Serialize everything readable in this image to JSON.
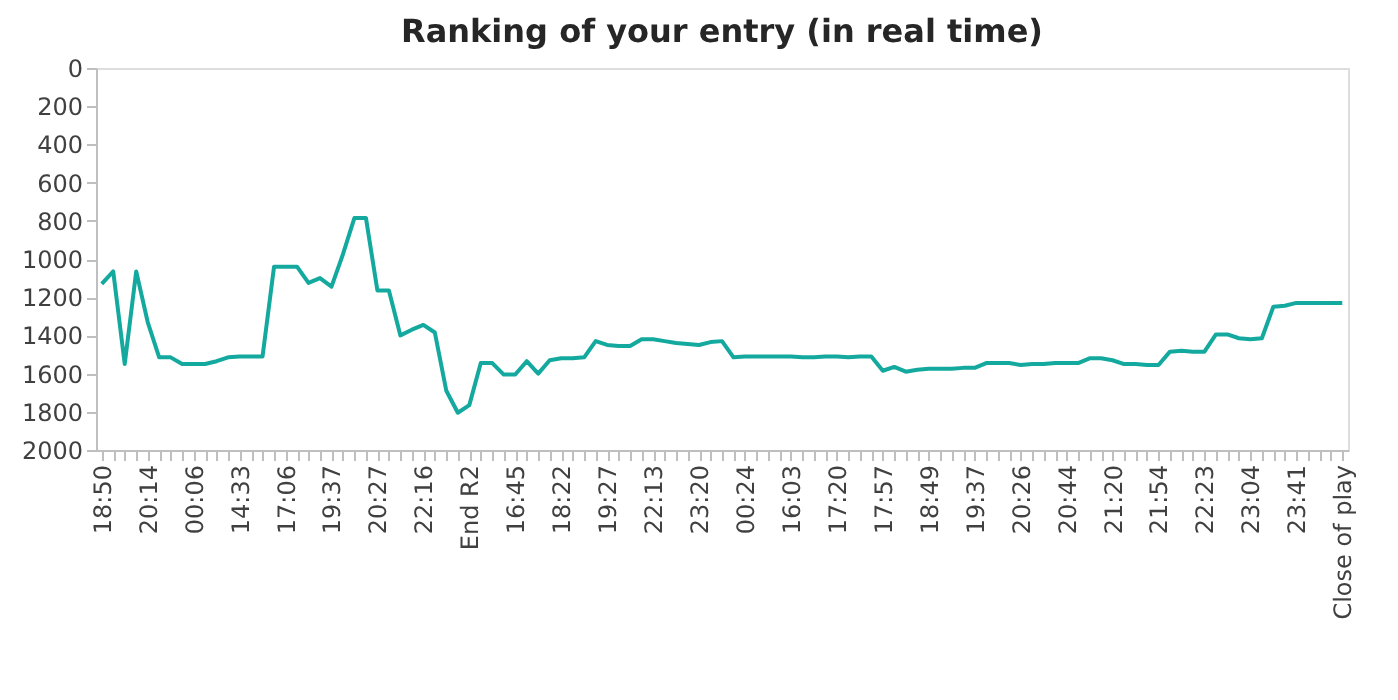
{
  "chart_data": {
    "type": "line",
    "title": "Ranking of your entry (in real time)",
    "categories": [
      "18:50",
      null,
      null,
      null,
      "20:14",
      null,
      null,
      null,
      "00:06",
      null,
      null,
      null,
      "14:33",
      null,
      null,
      null,
      "17:06",
      null,
      null,
      null,
      "19:37",
      null,
      null,
      null,
      "20:27",
      null,
      null,
      null,
      "22:16",
      null,
      null,
      null,
      "End R2",
      null,
      null,
      null,
      "16:45",
      null,
      null,
      null,
      "18:22",
      null,
      null,
      null,
      "19:27",
      null,
      null,
      null,
      "22:13",
      null,
      null,
      null,
      "23:20",
      null,
      null,
      null,
      "00:24",
      null,
      null,
      null,
      "16:03",
      null,
      null,
      null,
      "17:20",
      null,
      null,
      null,
      "17:57",
      null,
      null,
      null,
      "18:49",
      null,
      null,
      null,
      "19:37",
      null,
      null,
      null,
      "20:26",
      null,
      null,
      null,
      "20:44",
      null,
      null,
      null,
      "21:20",
      null,
      null,
      null,
      "21:54",
      null,
      null,
      null,
      "22:23",
      null,
      null,
      null,
      "23:04",
      null,
      null,
      null,
      "23:41",
      null,
      null,
      null,
      "Close of play"
    ],
    "series": [
      {
        "color": "#14a99e",
        "values": [
          1130,
          1065,
          1550,
          1065,
          1330,
          1515,
          1515,
          1550,
          1550,
          1550,
          1535,
          1515,
          1510,
          1510,
          1510,
          1040,
          1040,
          1040,
          1125,
          1100,
          1145,
          975,
          785,
          785,
          1165,
          1165,
          1400,
          1370,
          1345,
          1385,
          1690,
          1805,
          1765,
          1545,
          1545,
          1605,
          1605,
          1535,
          1600,
          1530,
          1520,
          1520,
          1515,
          1430,
          1450,
          1455,
          1455,
          1420,
          1420,
          1430,
          1440,
          1445,
          1450,
          1435,
          1430,
          1515,
          1510,
          1510,
          1510,
          1510,
          1510,
          1515,
          1515,
          1510,
          1510,
          1515,
          1510,
          1510,
          1585,
          1565,
          1590,
          1580,
          1575,
          1575,
          1575,
          1570,
          1570,
          1545,
          1545,
          1545,
          1555,
          1550,
          1550,
          1545,
          1545,
          1545,
          1520,
          1520,
          1530,
          1550,
          1550,
          1555,
          1555,
          1485,
          1480,
          1485,
          1485,
          1395,
          1395,
          1415,
          1420,
          1415,
          1250,
          1245,
          1230,
          1230,
          1230,
          1230,
          1230
        ]
      }
    ],
    "ylim": [
      2000,
      0
    ],
    "yticks": [
      0,
      200,
      400,
      600,
      800,
      1000,
      1200,
      1400,
      1600,
      1800,
      2000
    ],
    "grid": false,
    "legend": false
  }
}
